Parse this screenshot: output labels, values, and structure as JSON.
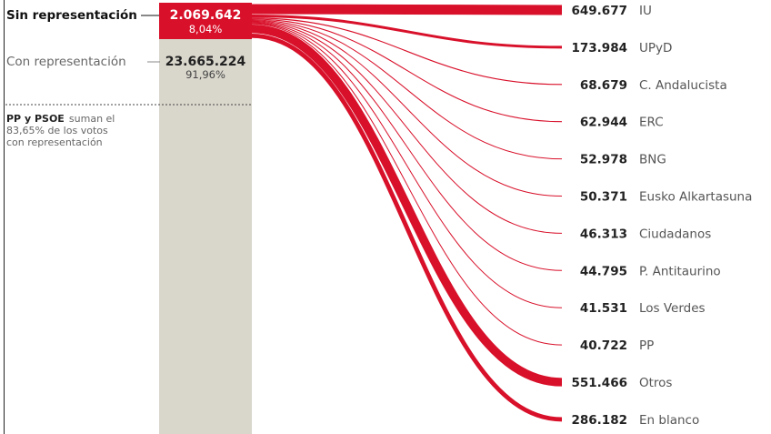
{
  "chart_data": {
    "type": "sankey",
    "title": "",
    "sin_representacion": {
      "label": "Sin representación",
      "value_text": "2.069.642",
      "percent_text": "8,04%",
      "value": 2069642,
      "percent": 8.04
    },
    "con_representacion": {
      "label": "Con representación",
      "value_text": "23.665.224",
      "percent_text": "91,96%",
      "value": 23665224,
      "percent": 91.96
    },
    "note": {
      "bold": "PP y PSOE",
      "rest": "suman el 83,65% de los votos con representación"
    },
    "flows": [
      {
        "name": "IU",
        "value_text": "649.677",
        "value": 649677
      },
      {
        "name": "UPyD",
        "value_text": "173.984",
        "value": 173984
      },
      {
        "name": "C. Andalucista",
        "value_text": "68.679",
        "value": 68679
      },
      {
        "name": "ERC",
        "value_text": "62.944",
        "value": 62944
      },
      {
        "name": "BNG",
        "value_text": "52.978",
        "value": 52978
      },
      {
        "name": "Eusko Alkartasuna",
        "value_text": "50.371",
        "value": 50371
      },
      {
        "name": "Ciudadanos",
        "value_text": "46.313",
        "value": 46313
      },
      {
        "name": "P. Antitaurino",
        "value_text": "44.795",
        "value": 44795
      },
      {
        "name": "Los Verdes",
        "value_text": "41.531",
        "value": 41531
      },
      {
        "name": "PP",
        "value_text": "40.722",
        "value": 40722
      },
      {
        "name": "Otros",
        "value_text": "551.466",
        "value": 551466
      },
      {
        "name": "En blanco",
        "value_text": "286.182",
        "value": 286182
      }
    ]
  },
  "colors": {
    "red": "#d8102a",
    "gray_bar": "#d9d6cc",
    "text": "#222222",
    "text_light": "#666666"
  }
}
